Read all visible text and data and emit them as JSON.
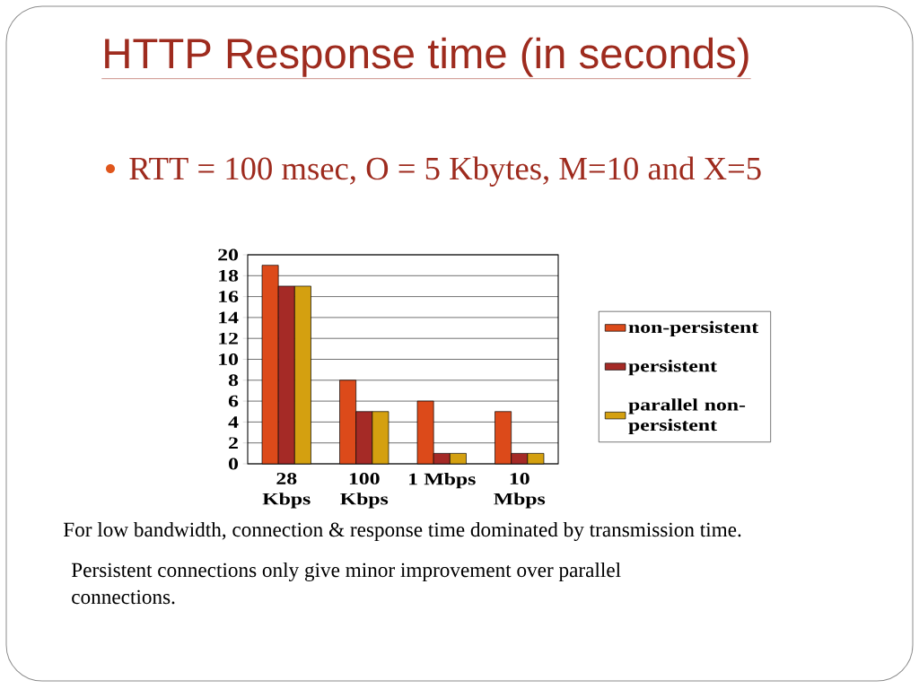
{
  "chart_data": {
    "type": "bar",
    "title": "HTTP Response time (in seconds)",
    "subtitle": "RTT = 100 msec, O = 5 Kbytes, M=10 and X=5",
    "categories": [
      "28 Kbps",
      "100 Kbps",
      "1 Mbps",
      "10 Mbps"
    ],
    "series": [
      {
        "name": "non-persistent",
        "color": "#dc4a1a",
        "values": [
          19,
          8,
          6,
          5
        ]
      },
      {
        "name": "persistent",
        "color": "#a52a26",
        "values": [
          17,
          5,
          1,
          1
        ]
      },
      {
        "name": "parallel non-persistent",
        "color": "#d4a010",
        "values": [
          17,
          5,
          1,
          1
        ]
      }
    ],
    "ylim": [
      0,
      20
    ],
    "yticks": [
      0,
      2,
      4,
      6,
      8,
      10,
      12,
      14,
      16,
      18,
      20
    ],
    "grid": "y",
    "legend": "right",
    "annotations": [
      "For low bandwidth, connection & response time dominated by transmission time.",
      "Persistent connections only give minor improvement over parallel connections."
    ]
  }
}
